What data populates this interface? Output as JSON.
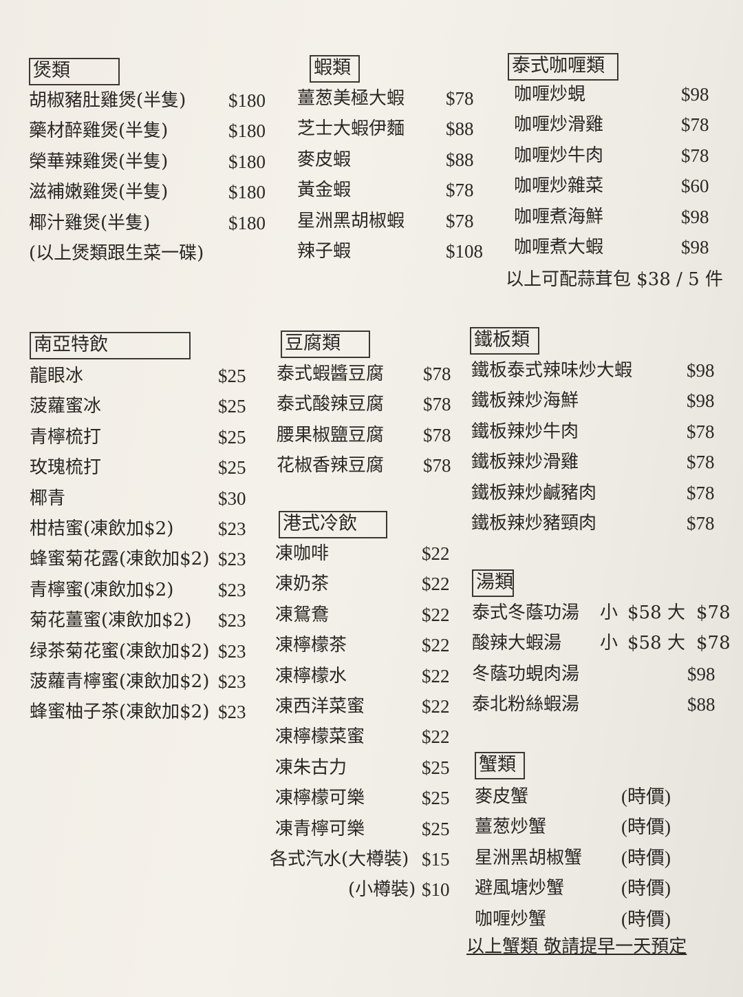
{
  "sections": {
    "claypot": {
      "title": "煲類",
      "items": [
        {
          "name": "胡椒豬肚雞煲(半隻)",
          "price": "$180"
        },
        {
          "name": "藥材醉雞煲(半隻)",
          "price": "$180"
        },
        {
          "name": "榮華辣雞煲(半隻)",
          "price": "$180"
        },
        {
          "name": "滋補嫩雞煲(半隻)",
          "price": "$180"
        },
        {
          "name": "椰汁雞煲(半隻)",
          "price": "$180"
        },
        {
          "name": "(以上煲類跟生菜一碟)",
          "price": ""
        }
      ]
    },
    "prawn": {
      "title": "蝦類",
      "items": [
        {
          "name": "薑葱美極大蝦",
          "price": "$78"
        },
        {
          "name": "芝士大蝦伊麵",
          "price": "$88"
        },
        {
          "name": "麥皮蝦",
          "price": "$88"
        },
        {
          "name": "黃金蝦",
          "price": "$78"
        },
        {
          "name": "星洲黑胡椒蝦",
          "price": "$78"
        },
        {
          "name": "辣子蝦",
          "price": "$108"
        }
      ]
    },
    "curry": {
      "title": "泰式咖喱類",
      "items": [
        {
          "name": "咖喱炒蜆",
          "price": "$98"
        },
        {
          "name": "咖喱炒滑雞",
          "price": "$78"
        },
        {
          "name": "咖喱炒牛肉",
          "price": "$78"
        },
        {
          "name": "咖喱炒雜菜",
          "price": "$60"
        },
        {
          "name": "咖喱煮海鮮",
          "price": "$98"
        },
        {
          "name": "咖喱煮大蝦",
          "price": "$98"
        }
      ],
      "note": "以上可配蒜茸包 $38 / 5 件"
    },
    "sea_drinks": {
      "title": "南亞特飲",
      "items": [
        {
          "name": "龍眼冰",
          "price": "$25"
        },
        {
          "name": "菠蘿蜜冰",
          "price": "$25"
        },
        {
          "name": "青檸梳打",
          "price": "$25"
        },
        {
          "name": "玫瑰梳打",
          "price": "$25"
        },
        {
          "name": "椰青",
          "price": "$30"
        },
        {
          "name": "柑桔蜜(凍飲加$2)",
          "price": "$23"
        },
        {
          "name": "蜂蜜菊花露(凍飲加$2)",
          "price": "$23"
        },
        {
          "name": "青檸蜜(凍飲加$2)",
          "price": "$23"
        },
        {
          "name": "菊花薑蜜(凍飲加$2)",
          "price": "$23"
        },
        {
          "name": "绿茶菊花蜜(凍飲加$2)",
          "price": "$23"
        },
        {
          "name": "菠蘿青檸蜜(凍飲加$2)",
          "price": "$23"
        },
        {
          "name": "蜂蜜柚子茶(凍飲加$2)",
          "price": "$23"
        }
      ]
    },
    "tofu": {
      "title": "豆腐類",
      "items": [
        {
          "name": "泰式蝦醬豆腐",
          "price": "$78"
        },
        {
          "name": "泰式酸辣豆腐",
          "price": "$78"
        },
        {
          "name": "腰果椒鹽豆腐",
          "price": "$78"
        },
        {
          "name": "花椒香辣豆腐",
          "price": "$78"
        }
      ]
    },
    "hk_drinks": {
      "title": "港式冷飲",
      "items": [
        {
          "name": "凍咖啡",
          "price": "$22"
        },
        {
          "name": "凍奶茶",
          "price": "$22"
        },
        {
          "name": "凍鴛鴦",
          "price": "$22"
        },
        {
          "name": "凍檸檬茶",
          "price": "$22"
        },
        {
          "name": "凍檸檬水",
          "price": "$22"
        },
        {
          "name": "凍西洋菜蜜",
          "price": "$22"
        },
        {
          "name": "凍檸檬菜蜜",
          "price": "$22"
        },
        {
          "name": "凍朱古力",
          "price": "$25"
        },
        {
          "name": "凍檸檬可樂",
          "price": "$25"
        },
        {
          "name": "凍青檸可樂",
          "price": "$25"
        },
        {
          "name": "各式汽水(大樽裝)",
          "price": "$15"
        },
        {
          "name": "(小樽裝)",
          "price": "$10"
        }
      ]
    },
    "sizzling": {
      "title": "鐵板類",
      "items": [
        {
          "name": "鐵板泰式辣味炒大蝦",
          "price": "$98"
        },
        {
          "name": "鐵板辣炒海鮮",
          "price": "$98"
        },
        {
          "name": "鐵板辣炒牛肉",
          "price": "$78"
        },
        {
          "name": "鐵板辣炒滑雞",
          "price": "$78"
        },
        {
          "name": "鐵板辣炒鹹豬肉",
          "price": "$78"
        },
        {
          "name": "鐵板辣炒豬頸肉",
          "price": "$78"
        }
      ]
    },
    "soup": {
      "title": "湯類",
      "items": [
        {
          "name": "泰式冬蔭功湯",
          "small_label": "小",
          "small_price": "$58",
          "large_label": "大",
          "large_price": "$78"
        },
        {
          "name": "酸辣大蝦湯",
          "small_label": "小",
          "small_price": "$58",
          "large_label": "大",
          "large_price": "$78"
        },
        {
          "name": "冬蔭功蜆肉湯",
          "price": "$98"
        },
        {
          "name": "泰北粉絲蝦湯",
          "price": "$88"
        }
      ]
    },
    "crab": {
      "title": "蟹類",
      "items": [
        {
          "name": "麥皮蟹",
          "price": "(時價)"
        },
        {
          "name": "薑葱炒蟹",
          "price": "(時價)"
        },
        {
          "name": "星洲黑胡椒蟹",
          "price": "(時價)"
        },
        {
          "name": "避風塘炒蟹",
          "price": "(時價)"
        },
        {
          "name": "咖喱炒蟹",
          "price": "(時價)"
        }
      ],
      "note": "以上蟹類  敬請提早一天預定"
    }
  }
}
